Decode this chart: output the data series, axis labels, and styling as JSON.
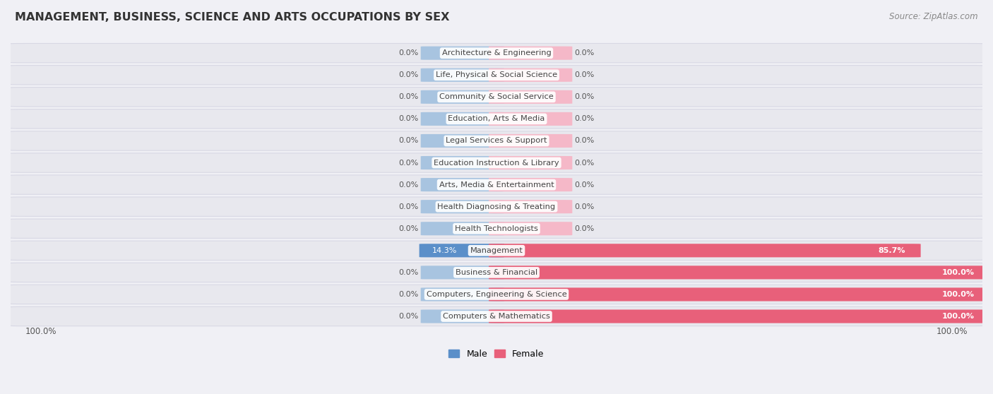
{
  "title": "Management, Business, Science and Arts Occupations by Sex",
  "title_display": "MANAGEMENT, BUSINESS, SCIENCE AND ARTS OCCUPATIONS BY SEX",
  "source": "Source: ZipAtlas.com",
  "categories": [
    "Architecture & Engineering",
    "Life, Physical & Social Science",
    "Community & Social Service",
    "Education, Arts & Media",
    "Legal Services & Support",
    "Education Instruction & Library",
    "Arts, Media & Entertainment",
    "Health Diagnosing & Treating",
    "Health Technologists",
    "Management",
    "Business & Financial",
    "Computers, Engineering & Science",
    "Computers & Mathematics"
  ],
  "male_values": [
    0.0,
    0.0,
    0.0,
    0.0,
    0.0,
    0.0,
    0.0,
    0.0,
    0.0,
    14.3,
    0.0,
    0.0,
    0.0
  ],
  "female_values": [
    0.0,
    0.0,
    0.0,
    0.0,
    0.0,
    0.0,
    0.0,
    0.0,
    0.0,
    85.7,
    100.0,
    100.0,
    100.0
  ],
  "male_color_light": "#a8c4e0",
  "male_color_dark": "#5b8fc9",
  "female_color_light": "#f5b8c8",
  "female_color_dark": "#e8607a",
  "bg_color": "#f0f0f5",
  "row_color": "#e8e8ee",
  "row_edge_color": "#d8d8e4",
  "label_bg": "#ffffff",
  "text_color": "#444444",
  "axis_label_color": "#555555",
  "max_value": 100.0,
  "legend_male": "Male",
  "legend_female": "Female",
  "bottom_left_label": "100.0%",
  "bottom_right_label": "100.0%"
}
